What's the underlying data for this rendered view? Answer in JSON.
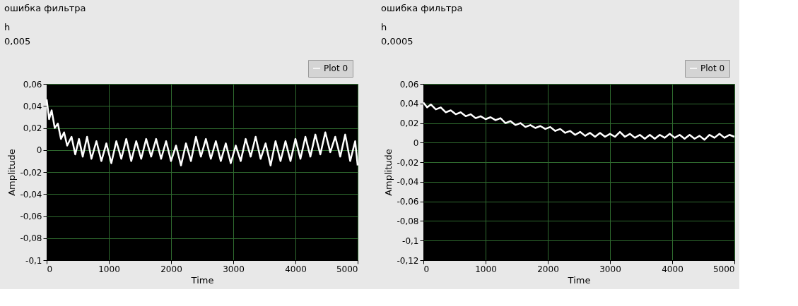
{
  "chart_data": [
    {
      "type": "line",
      "title": "ошибка фильтра",
      "annotations": [
        "h",
        "0,005"
      ],
      "xlabel": "Time",
      "ylabel": "Amplitude",
      "legend": "top right",
      "grid": true,
      "xlim": [
        0,
        5000
      ],
      "xticks": [
        0,
        1000,
        2000,
        3000,
        4000,
        5000
      ],
      "ylim": [
        -0.1,
        0.06
      ],
      "yticks": [
        {
          "value": -0.1,
          "label": "-0,1"
        },
        {
          "value": -0.08,
          "label": "-0,08"
        },
        {
          "value": -0.06,
          "label": "-0,06"
        },
        {
          "value": -0.04,
          "label": "-0,04"
        },
        {
          "value": -0.02,
          "label": "-0,02"
        },
        0,
        {
          "value": 0.02,
          "label": "0,02"
        },
        {
          "value": 0.04,
          "label": "0,04"
        },
        {
          "value": 0.06,
          "label": "0,06"
        }
      ],
      "x": [
        0,
        40,
        80,
        130,
        180,
        230,
        280,
        330,
        400,
        460,
        520,
        580,
        650,
        720,
        800,
        880,
        960,
        1040,
        1120,
        1200,
        1280,
        1360,
        1440,
        1520,
        1600,
        1680,
        1760,
        1840,
        1920,
        2000,
        2080,
        2160,
        2240,
        2320,
        2400,
        2480,
        2560,
        2640,
        2720,
        2800,
        2880,
        2960,
        3040,
        3120,
        3200,
        3280,
        3360,
        3440,
        3520,
        3600,
        3680,
        3760,
        3840,
        3920,
        4000,
        4080,
        4160,
        4240,
        4320,
        4400,
        4480,
        4560,
        4640,
        4720,
        4800,
        4880,
        4960,
        5000
      ],
      "series": [
        {
          "name": "Plot 0",
          "color": "#ffffff",
          "values": [
            0.046,
            0.028,
            0.036,
            0.02,
            0.024,
            0.01,
            0.016,
            0.004,
            0.012,
            -0.004,
            0.01,
            -0.006,
            0.012,
            -0.008,
            0.008,
            -0.01,
            0.006,
            -0.012,
            0.008,
            -0.008,
            0.01,
            -0.01,
            0.008,
            -0.008,
            0.01,
            -0.006,
            0.01,
            -0.008,
            0.008,
            -0.01,
            0.004,
            -0.014,
            0.006,
            -0.01,
            0.012,
            -0.006,
            0.01,
            -0.008,
            0.008,
            -0.01,
            0.006,
            -0.012,
            0.004,
            -0.01,
            0.01,
            -0.006,
            0.012,
            -0.008,
            0.006,
            -0.014,
            0.008,
            -0.01,
            0.008,
            -0.01,
            0.01,
            -0.008,
            0.012,
            -0.006,
            0.014,
            -0.004,
            0.016,
            -0.002,
            0.012,
            -0.006,
            0.014,
            -0.01,
            0.008,
            -0.014
          ]
        }
      ]
    },
    {
      "type": "line",
      "title": "ошибка фильтра",
      "annotations": [
        "h",
        "0,0005"
      ],
      "xlabel": "Time",
      "ylabel": "Amplitude",
      "legend": "top right",
      "grid": true,
      "xlim": [
        0,
        5000
      ],
      "xticks": [
        0,
        1000,
        2000,
        3000,
        4000,
        5000
      ],
      "ylim": [
        -0.12,
        0.06
      ],
      "yticks": [
        {
          "value": -0.12,
          "label": "-0,12"
        },
        {
          "value": -0.1,
          "label": "-0,1"
        },
        {
          "value": -0.08,
          "label": "-0,08"
        },
        {
          "value": -0.06,
          "label": "-0,06"
        },
        {
          "value": -0.04,
          "label": "-0,04"
        },
        {
          "value": -0.02,
          "label": "-0,02"
        },
        0,
        {
          "value": 0.02,
          "label": "0,02"
        },
        {
          "value": 0.04,
          "label": "0,04"
        },
        {
          "value": 0.06,
          "label": "0,06"
        }
      ],
      "x": [
        0,
        60,
        120,
        200,
        280,
        360,
        440,
        520,
        600,
        680,
        760,
        840,
        920,
        1000,
        1080,
        1160,
        1240,
        1320,
        1400,
        1480,
        1560,
        1640,
        1720,
        1800,
        1880,
        1960,
        2040,
        2120,
        2200,
        2280,
        2360,
        2440,
        2520,
        2600,
        2680,
        2760,
        2840,
        2920,
        3000,
        3080,
        3160,
        3240,
        3320,
        3400,
        3480,
        3560,
        3640,
        3720,
        3800,
        3880,
        3960,
        4040,
        4120,
        4200,
        4280,
        4360,
        4440,
        4520,
        4600,
        4680,
        4760,
        4840,
        4920,
        5000
      ],
      "series": [
        {
          "name": "Plot 0",
          "color": "#ffffff",
          "values": [
            0.041,
            0.036,
            0.039,
            0.034,
            0.036,
            0.031,
            0.033,
            0.029,
            0.031,
            0.027,
            0.029,
            0.025,
            0.027,
            0.024,
            0.026,
            0.023,
            0.025,
            0.02,
            0.022,
            0.018,
            0.02,
            0.016,
            0.018,
            0.015,
            0.017,
            0.014,
            0.016,
            0.012,
            0.014,
            0.01,
            0.012,
            0.008,
            0.011,
            0.007,
            0.01,
            0.006,
            0.01,
            0.006,
            0.009,
            0.006,
            0.011,
            0.006,
            0.009,
            0.005,
            0.008,
            0.004,
            0.008,
            0.004,
            0.008,
            0.005,
            0.009,
            0.005,
            0.008,
            0.004,
            0.008,
            0.004,
            0.007,
            0.003,
            0.008,
            0.005,
            0.009,
            0.005,
            0.008,
            0.006
          ]
        }
      ]
    }
  ]
}
